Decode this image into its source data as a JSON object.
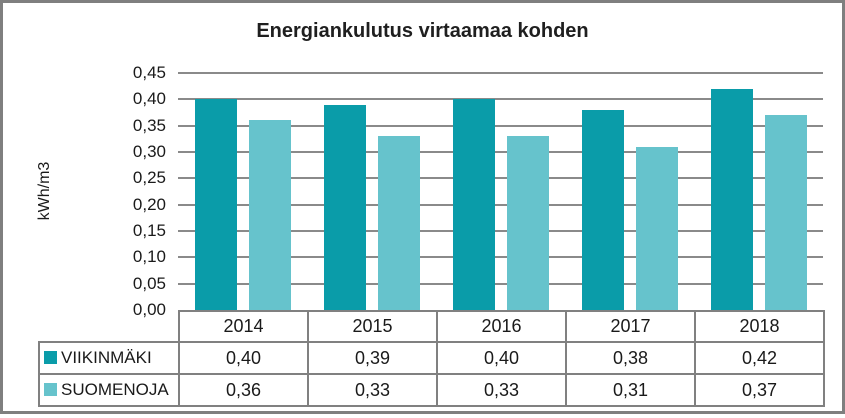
{
  "window": {
    "background_color": "#ffffff",
    "frame_border_color": "#7f7f7f"
  },
  "chart_data": {
    "type": "bar",
    "title": "Energiankulutus virtaamaa kohden",
    "xlabel": "",
    "ylabel": "kWh/m3",
    "categories": [
      "2014",
      "2015",
      "2016",
      "2017",
      "2018"
    ],
    "series": [
      {
        "name": "VIIKINMÄKI",
        "color": "#0A9CA9",
        "values": [
          0.4,
          0.39,
          0.4,
          0.38,
          0.42
        ],
        "labels": [
          "0,40",
          "0,39",
          "0,40",
          "0,38",
          "0,42"
        ]
      },
      {
        "name": "SUOMENOJA",
        "color": "#66C3CC",
        "values": [
          0.36,
          0.33,
          0.33,
          0.31,
          0.37
        ],
        "labels": [
          "0,36",
          "0,33",
          "0,33",
          "0,31",
          "0,37"
        ]
      }
    ],
    "ylim": [
      0,
      0.45
    ],
    "ytick_step": 0.05,
    "ytick_labels": [
      "0,00",
      "0,05",
      "0,10",
      "0,15",
      "0,20",
      "0,25",
      "0,30",
      "0,35",
      "0,40",
      "0,45"
    ],
    "grid": true,
    "gridline_color": "#8a8a8a",
    "table_border_color": "#808080",
    "legend_position": "table-left"
  }
}
